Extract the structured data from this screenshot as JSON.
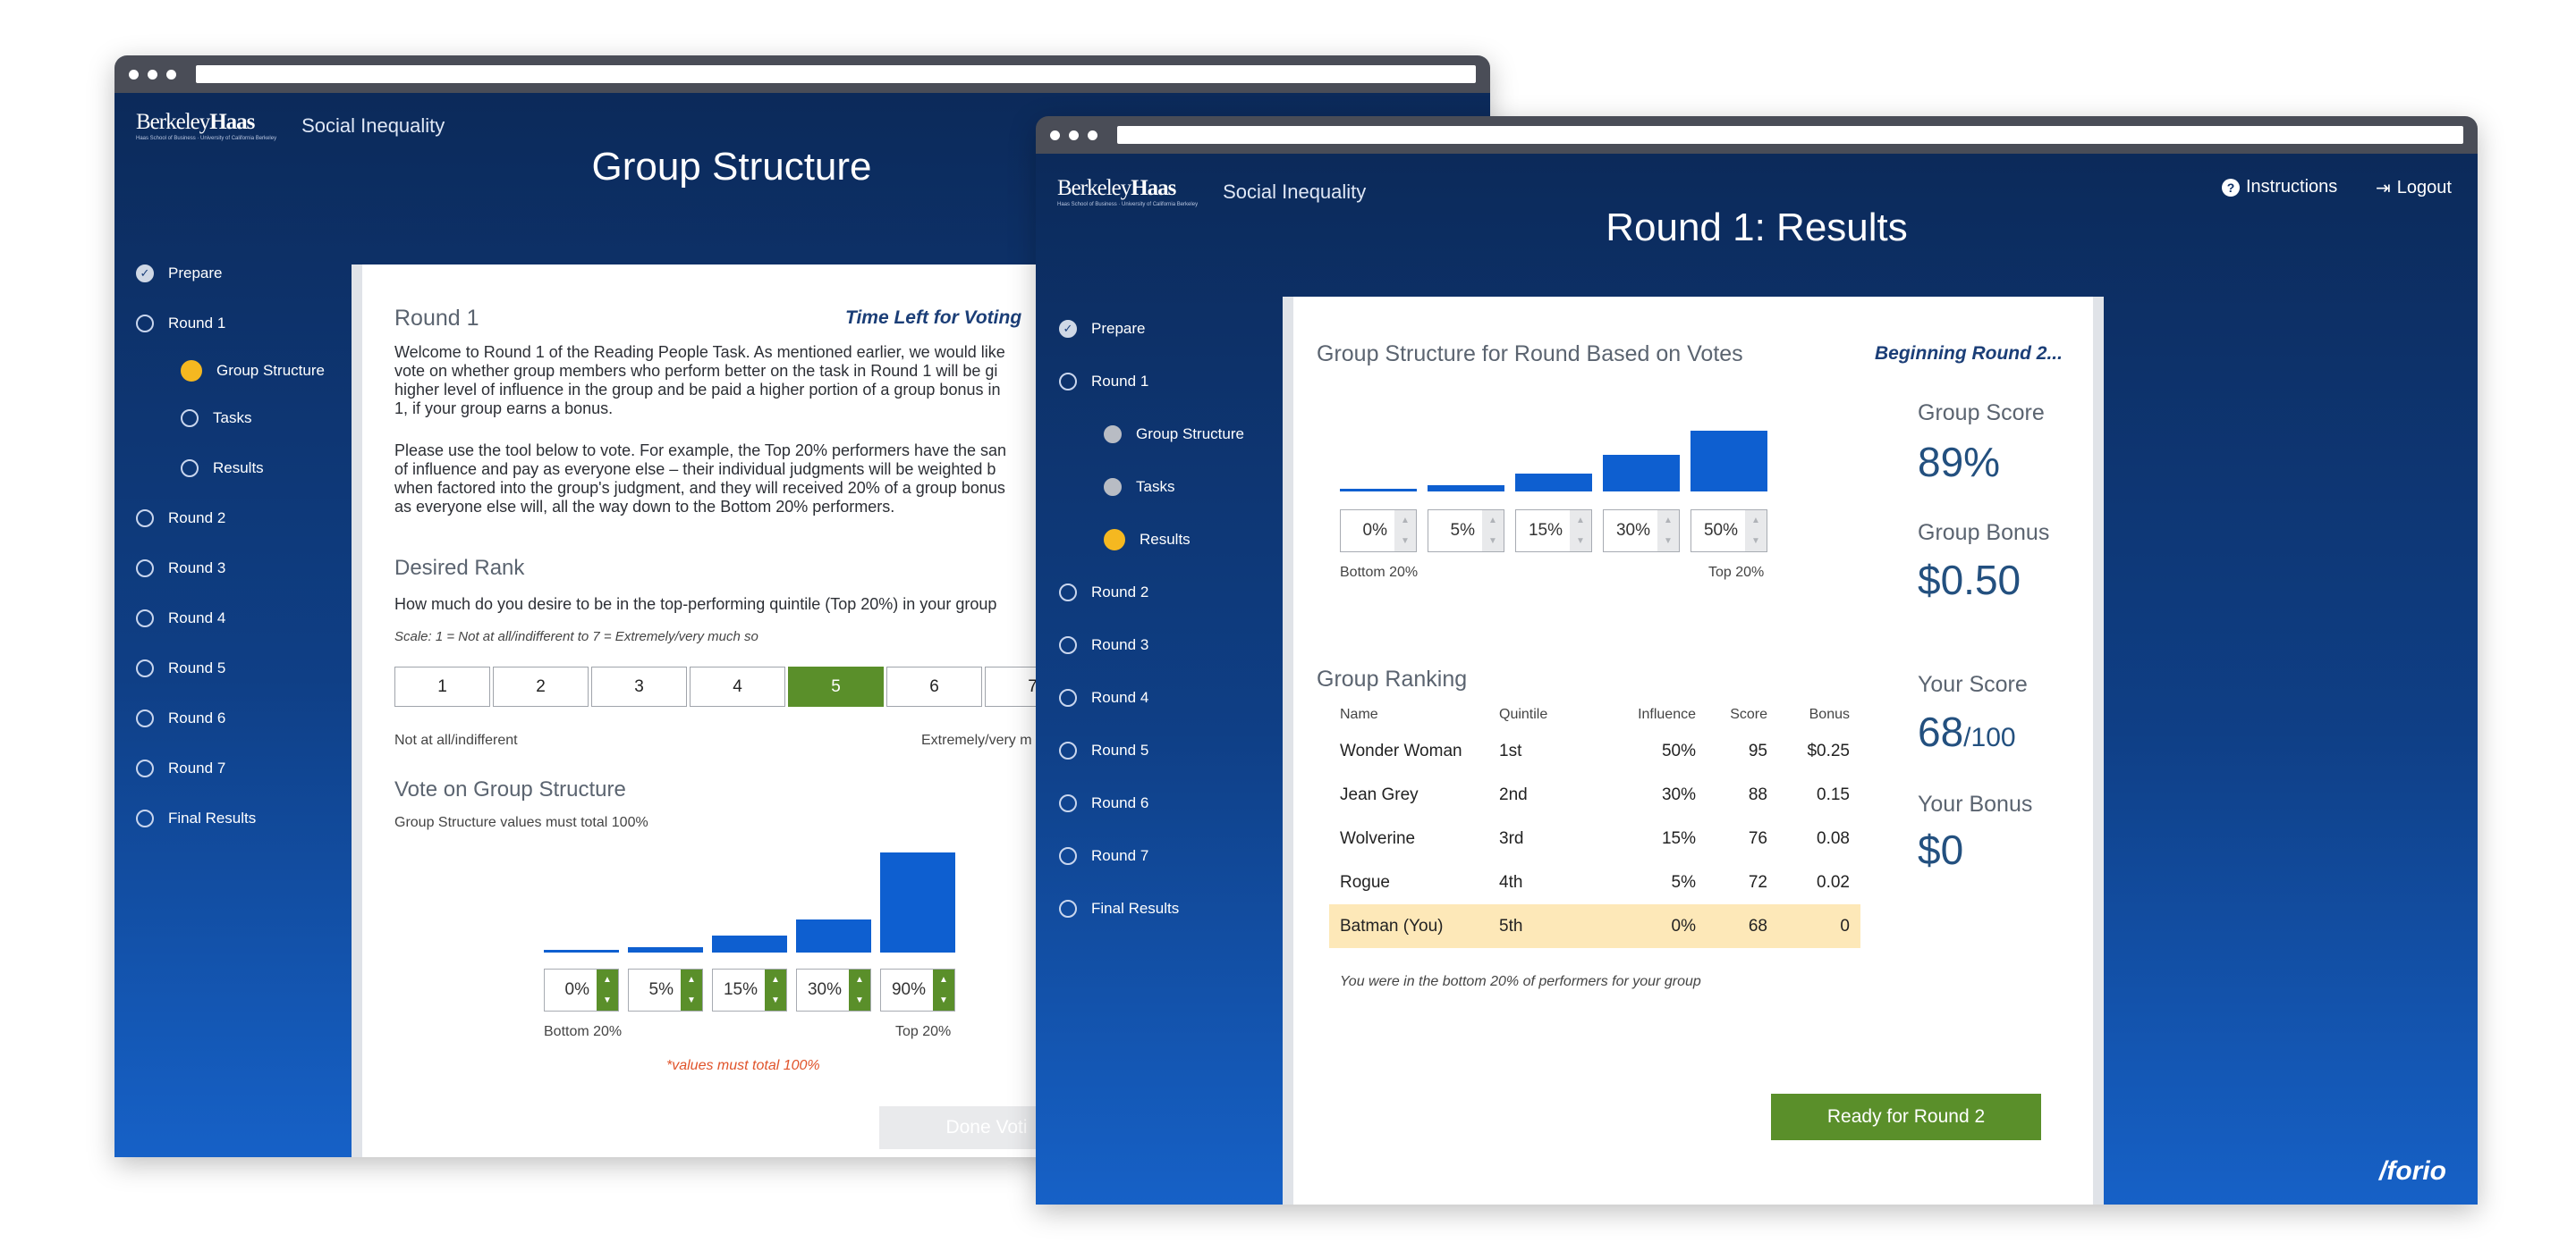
{
  "window1": {
    "brand": {
      "logo_prefix": "Berkeley",
      "logo_bold": "Haas",
      "logo_tagline": "Haas School of Business · University of California Berkeley",
      "app_name": "Social Inequality"
    },
    "page_title": "Group Structure",
    "nav": {
      "items": [
        {
          "label": "Prepare",
          "state": "check"
        },
        {
          "label": "Round 1",
          "state": "open"
        },
        {
          "label": "Group Structure",
          "state": "active",
          "sub": true
        },
        {
          "label": "Tasks",
          "state": "open",
          "sub": true
        },
        {
          "label": "Results",
          "state": "open",
          "sub": true
        },
        {
          "label": "Round 2",
          "state": "open"
        },
        {
          "label": "Round 3",
          "state": "open"
        },
        {
          "label": "Round 4",
          "state": "open"
        },
        {
          "label": "Round 5",
          "state": "open"
        },
        {
          "label": "Round 6",
          "state": "open"
        },
        {
          "label": "Round 7",
          "state": "open"
        },
        {
          "label": "Final Results",
          "state": "open"
        }
      ]
    },
    "card": {
      "round_title": "Round 1",
      "time_left": "Time Left for Voting",
      "para1_lines": [
        "Welcome to Round 1 of the Reading People Task. As mentioned earlier, we would like",
        "vote on whether group members who perform better on the task in Round 1 will be gi",
        "higher level of influence in the group and be paid a higher portion of a group bonus in",
        "1, if your group earns a bonus."
      ],
      "para2_lines": [
        "Please use the tool below to vote. For example, the Top 20% performers have the san",
        "of influence and pay as everyone else – their individual judgments will be weighted b",
        "when factored into the group's judgment, and they will received 20% of a group bonus",
        "as everyone else will, all the way down to the Bottom 20% performers."
      ],
      "desired_rank_title": "Desired Rank",
      "desired_rank_question": "How much do you desire to be in the top-performing quintile (Top 20%) in your group",
      "scale_note": "Scale: 1 = Not at all/indifferent to 7 = Extremely/very much so",
      "scale": [
        "1",
        "2",
        "3",
        "4",
        "5",
        "6",
        "7"
      ],
      "selected_scale": 4,
      "scale_low": "Not at all/indifferent",
      "scale_high": "Extremely/very m",
      "vote_title": "Vote on Group Structure",
      "vote_note": "Group Structure values must total 100%",
      "bars": [
        {
          "label": "0%",
          "value": 0
        },
        {
          "label": "5%",
          "value": 5
        },
        {
          "label": "15%",
          "value": 15
        },
        {
          "label": "30%",
          "value": 30
        },
        {
          "label": "90%",
          "value": 90
        }
      ],
      "bottom_label": "Bottom 20%",
      "top_label": "Top 20%",
      "warning": "*values must total 100%",
      "done_button": "Done Voti"
    }
  },
  "window2": {
    "brand": {
      "logo_prefix": "Berkeley",
      "logo_bold": "Haas",
      "logo_tagline": "Haas School of Business · University of California Berkeley",
      "app_name": "Social Inequality"
    },
    "page_title": "Round 1: Results",
    "instructions_link": "Instructions",
    "logout_link": "Logout",
    "nav": {
      "items": [
        {
          "label": "Prepare",
          "state": "check"
        },
        {
          "label": "Round 1",
          "state": "open"
        },
        {
          "label": "Group Structure",
          "state": "grey",
          "sub": true
        },
        {
          "label": "Tasks",
          "state": "grey",
          "sub": true
        },
        {
          "label": "Results",
          "state": "active",
          "sub": true
        },
        {
          "label": "Round 2",
          "state": "open"
        },
        {
          "label": "Round 3",
          "state": "open"
        },
        {
          "label": "Round 4",
          "state": "open"
        },
        {
          "label": "Round 5",
          "state": "open"
        },
        {
          "label": "Round 6",
          "state": "open"
        },
        {
          "label": "Round 7",
          "state": "open"
        },
        {
          "label": "Final Results",
          "state": "open"
        }
      ]
    },
    "card": {
      "structure_title": "Group Structure for Round Based on Votes",
      "beginning": "Beginning Round 2...",
      "bars": [
        {
          "label": "0%",
          "value": 0
        },
        {
          "label": "5%",
          "value": 5
        },
        {
          "label": "15%",
          "value": 15
        },
        {
          "label": "30%",
          "value": 30
        },
        {
          "label": "50%",
          "value": 50
        }
      ],
      "bottom_label": "Bottom 20%",
      "top_label": "Top 20%",
      "ranking_title": "Group Ranking",
      "table_headers": [
        "Name",
        "Quintile",
        "Influence",
        "Score",
        "Bonus"
      ],
      "rows": [
        {
          "name": "Wonder Woman",
          "quintile": "1st",
          "influence": "50%",
          "score": "95",
          "bonus": "$0.25",
          "you": false
        },
        {
          "name": "Jean Grey",
          "quintile": "2nd",
          "influence": "30%",
          "score": "88",
          "bonus": "0.15",
          "you": false
        },
        {
          "name": "Wolverine",
          "quintile": "3rd",
          "influence": "15%",
          "score": "76",
          "bonus": "0.08",
          "you": false
        },
        {
          "name": "Rogue",
          "quintile": "4th",
          "influence": "5%",
          "score": "72",
          "bonus": "0.02",
          "you": false
        },
        {
          "name": "Batman (You)",
          "quintile": "5th",
          "influence": "0%",
          "score": "68",
          "bonus": "0",
          "you": true
        }
      ],
      "footnote": "You were in the bottom 20% of performers for your group",
      "group_score_label": "Group Score",
      "group_score": "89%",
      "group_bonus_label": "Group Bonus",
      "group_bonus": "$0.50",
      "your_score_label": "Your Score",
      "your_score": "68",
      "your_score_max": "/100",
      "your_bonus_label": "Your Bonus",
      "your_bonus": "$0",
      "ready_button": "Ready for Round 2"
    },
    "footer_brand": "/forio"
  },
  "colors": {
    "navy": "#0c2a5a",
    "blue_bar": "#0e5fd0",
    "green": "#5a8f2a",
    "active_dot": "#f5b820",
    "highlight_row": "#fde8b8"
  }
}
